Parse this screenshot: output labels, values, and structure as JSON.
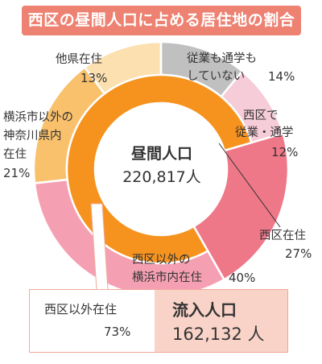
{
  "title": "西区の昼間人口に占める居住地の割合",
  "center": {
    "title": "昼間人口",
    "value": "220,817人"
  },
  "chart_data": {
    "type": "pie",
    "title": "西区の昼間人口に占める居住地の割合",
    "slices": [
      {
        "label": "従業も通学もしていない",
        "value": 14,
        "color": "#c0c0c0",
        "ring": "outer"
      },
      {
        "label": "西区で従業・通学",
        "value": 12,
        "color": "#f5ccd8",
        "ring": "outer"
      },
      {
        "label": "西区在住",
        "value": 27,
        "color": "#ee7888",
        "ring": "inner"
      },
      {
        "label": "西区以外の横浜市内在住",
        "value": 40,
        "color": "#f5a0b2",
        "ring": "outer"
      },
      {
        "label": "横浜市以外の神奈川県内在住",
        "value": 21,
        "color": "#f9c16c",
        "ring": "outer"
      },
      {
        "label": "他県在住",
        "value": 13,
        "color": "#fce0b0",
        "ring": "outer"
      }
    ],
    "inner_ring": [
      {
        "label": "西区在住",
        "value": 27,
        "color": "#ee7888"
      },
      {
        "label": "西区以外在住",
        "value": 73,
        "color": "#f6931f"
      }
    ]
  },
  "labels": {
    "no_work_l1": "従業も通学も",
    "no_work_l2": "していない",
    "no_work_pct": "14%",
    "nishi_work_l1": "西区で",
    "nishi_work_l2": "従業・通学",
    "nishi_work_pct": "12%",
    "nishi_res_l1": "西区在住",
    "nishi_res_pct": "27%",
    "yoko_l1": "西区以外の",
    "yoko_l2": "横浜市内在住",
    "yoko_pct": "40%",
    "kana_l1": "横浜市以外の",
    "kana_l2": "神奈川県内",
    "kana_l3": "在住",
    "kana_pct": "21%",
    "other_l1": "他県在住",
    "other_pct": "13%"
  },
  "inflow": {
    "label": "西区以外在住",
    "pct": "73%",
    "title": "流入人口",
    "value": "162,132 人"
  }
}
